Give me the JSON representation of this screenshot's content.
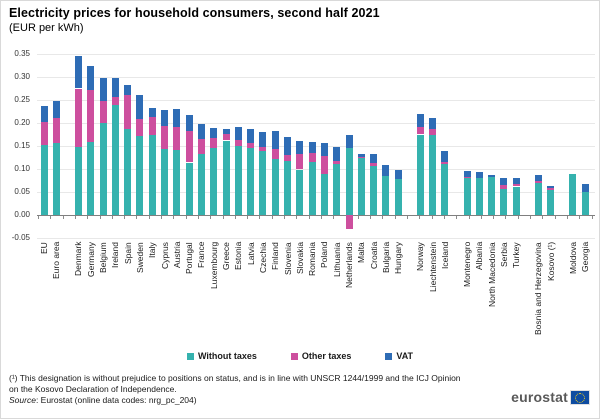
{
  "title": "Electricity prices for household consumers, second half 2021",
  "subtitle": "(EUR per kWh)",
  "colors": {
    "without": "#35b2ae",
    "other": "#cd4f9e",
    "vat": "#2e6cb5",
    "grid": "#e8e8e8",
    "axis": "#7f7f7f"
  },
  "y_axis": {
    "min": -0.05,
    "max": 0.35,
    "step": 0.05,
    "ticks": [
      "0.35",
      "0.30",
      "0.25",
      "0.20",
      "0.15",
      "0.10",
      "0.05",
      "0.00",
      "-0.05"
    ]
  },
  "legend": {
    "items": [
      {
        "key": "without",
        "label": "Without taxes"
      },
      {
        "key": "other",
        "label": "Other taxes"
      },
      {
        "key": "vat",
        "label": "VAT"
      }
    ]
  },
  "chart_data": {
    "type": "bar",
    "stacked": true,
    "title": "Electricity prices for household consumers, second half 2021",
    "ylabel": "EUR per kWh",
    "ylim": [
      -0.05,
      0.35
    ],
    "grid": true,
    "legend_position": "bottom",
    "categories": [
      "EU",
      "Euro area",
      "Denmark",
      "Germany",
      "Belgium",
      "Ireland",
      "Spain",
      "Sweden",
      "Italy",
      "Cyprus",
      "Austria",
      "Portugal",
      "France",
      "Luxembourg",
      "Greece",
      "Estonia",
      "Latvia",
      "Czechia",
      "Finland",
      "Slovenia",
      "Slovakia",
      "Romania",
      "Poland",
      "Lithuania",
      "Netherlands",
      "Malta",
      "Croatia",
      "Bulgaria",
      "Hungary",
      "Norway",
      "Liechtenstein",
      "Iceland",
      "Montenegro",
      "Albania",
      "North Macedonia",
      "Serbia",
      "Turkey",
      "Bosnia and Herzegovina",
      "Kosovo (¹)",
      "Moldova",
      "Georgia"
    ],
    "group_sizes": [
      2,
      27,
      3,
      5,
      2,
      2
    ],
    "series": [
      {
        "key": "without",
        "name": "Without taxes",
        "values": [
          0.153,
          0.157,
          0.147,
          0.159,
          0.2,
          0.24,
          0.186,
          0.172,
          0.173,
          0.143,
          0.141,
          0.114,
          0.133,
          0.146,
          0.162,
          0.15,
          0.145,
          0.139,
          0.122,
          0.117,
          0.099,
          0.115,
          0.089,
          0.11,
          0.146,
          0.126,
          0.107,
          0.085,
          0.079,
          0.175,
          0.174,
          0.11,
          0.08,
          0.08,
          0.082,
          0.056,
          0.062,
          0.07,
          0.054,
          0.09,
          0.05
        ]
      },
      {
        "key": "other",
        "name": "Other taxes",
        "values": [
          0.049,
          0.053,
          0.128,
          0.112,
          0.048,
          0.017,
          0.074,
          0.036,
          0.04,
          0.05,
          0.05,
          0.069,
          0.033,
          0.022,
          0.015,
          0.014,
          0.012,
          0.009,
          0.021,
          0.013,
          0.033,
          0.02,
          0.039,
          0.007,
          -0.031,
          0.001,
          0.007,
          0.0,
          0.0,
          0.016,
          0.012,
          0.006,
          0.003,
          0.0,
          0.0,
          0.009,
          0.005,
          0.004,
          0.004,
          0.0,
          0.0
        ]
      },
      {
        "key": "vat",
        "name": "VAT",
        "values": [
          0.035,
          0.038,
          0.07,
          0.052,
          0.051,
          0.04,
          0.022,
          0.052,
          0.02,
          0.035,
          0.039,
          0.034,
          0.032,
          0.022,
          0.011,
          0.028,
          0.029,
          0.032,
          0.04,
          0.04,
          0.029,
          0.024,
          0.028,
          0.032,
          0.027,
          0.005,
          0.018,
          0.023,
          0.02,
          0.029,
          0.025,
          0.023,
          0.013,
          0.014,
          0.004,
          0.016,
          0.013,
          0.014,
          0.005,
          0.0,
          0.017
        ]
      }
    ]
  },
  "footnote": "(¹) This designation is without prejudice to positions on status, and is in line with UNSCR 1244/1999 and the ICJ Opinion on the Kosovo Declaration of Independence.",
  "source": {
    "prefix": "Source",
    "rest": ": Eurostat (online data codes: nrg_pc_204)"
  },
  "logo": {
    "text": "eurostat"
  }
}
